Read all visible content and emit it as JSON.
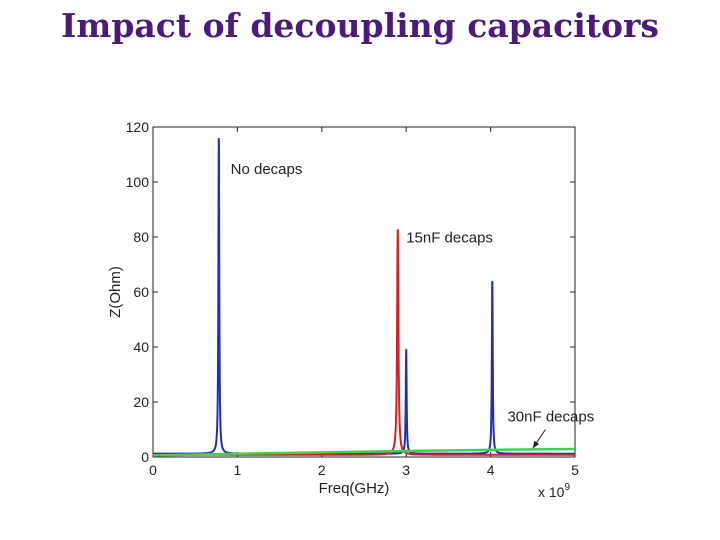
{
  "slide": {
    "title": "Impact of decoupling capacitors"
  },
  "chart_data": {
    "type": "line",
    "xlabel": "Freq(GHz)",
    "ylabel": "Z(Ohm)",
    "x_multiplier": "x 10",
    "x_multiplier_exp": "9",
    "xlim": [
      0,
      5
    ],
    "ylim": [
      0,
      120
    ],
    "xticks": [
      0,
      1,
      2,
      3,
      4,
      5
    ],
    "yticks": [
      0,
      20,
      40,
      60,
      80,
      100,
      120
    ],
    "grid": false,
    "series": [
      {
        "name": "No decaps",
        "color": "#1f2fb8",
        "peaks": [
          {
            "f": 0.78,
            "z": 117
          },
          {
            "f": 3.0,
            "z": 38
          },
          {
            "f": 4.02,
            "z": 64
          }
        ],
        "width": 0.006,
        "baseline": 1.2
      },
      {
        "name": "15nF decaps",
        "color": "#d81f1f",
        "peaks": [
          {
            "f": 2.9,
            "z": 82
          }
        ],
        "width": 0.009,
        "baseline": 0.8
      },
      {
        "name": "30nF decaps",
        "color": "#3fd43f",
        "points": [
          [
            0,
            0.6
          ],
          [
            1,
            1.2
          ],
          [
            2,
            1.7
          ],
          [
            3,
            2.2
          ],
          [
            4,
            2.6
          ],
          [
            5,
            2.9
          ]
        ]
      }
    ],
    "annotations": [
      {
        "text": "No decaps",
        "series": "No decaps"
      },
      {
        "text": "15nF decaps",
        "series": "15nF decaps"
      },
      {
        "text": "30nF decaps",
        "series": "30nF decaps"
      }
    ]
  }
}
